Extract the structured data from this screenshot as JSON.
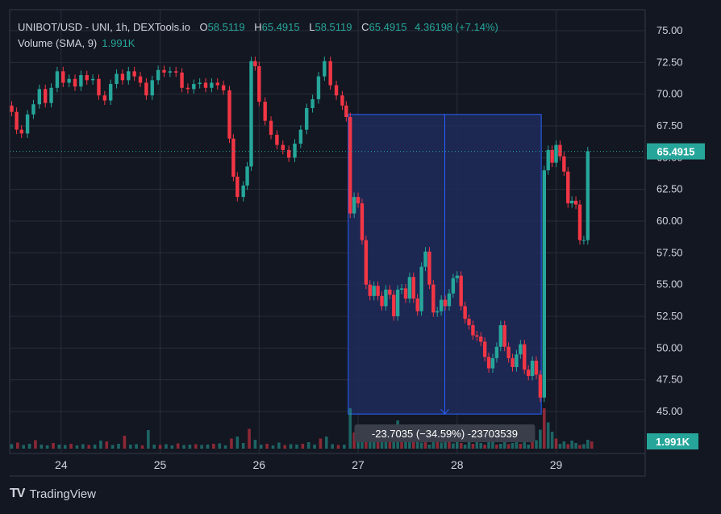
{
  "header": {
    "symbol": "UNIBOT/USD - UNI, 1h, DEXTools.io",
    "open_label": "O",
    "open_value": "58.5119",
    "high_label": "H",
    "high_value": "65.4915",
    "low_label": "L",
    "low_value": "58.5119",
    "close_label": "C",
    "close_value": "65.4915",
    "change": "4.36198 (+7.14%)",
    "volume_label": "Volume (SMA, 9)",
    "volume_value": "1.991K"
  },
  "price_badge": "65.4915",
  "volume_badge": "1.991K",
  "measure": {
    "label": "-23.7035 (−34.59%) -23703539",
    "from_price": 68.4,
    "to_price": 44.8,
    "from_time": 26.9,
    "to_time": 28.85
  },
  "brand": {
    "logo": "TV",
    "name": "TradingView"
  },
  "colors": {
    "background": "#131722",
    "up": "#26a69a",
    "down": "#f23645",
    "grid": "#2a2e39",
    "measure_fill": "#1e2a5a",
    "measure_line": "#2962ff",
    "text": "#d1d4dc"
  },
  "chart_data": {
    "type": "candlestick",
    "title": "UNIBOT/USD - UNI, 1h, DEXTools.io",
    "y_axis_ticks": [
      "75.00",
      "72.50",
      "70.00",
      "67.50",
      "65.00",
      "62.50",
      "60.00",
      "57.50",
      "55.00",
      "52.50",
      "50.00",
      "47.50",
      "45.00"
    ],
    "ylim": [
      44.0,
      76.0
    ],
    "x_axis_ticks": [
      "24",
      "25",
      "26",
      "27",
      "28",
      "29"
    ],
    "xlim": [
      23.48,
      29.9
    ],
    "last_price": 65.4915,
    "grid": true,
    "price_series": [
      [
        23.5,
        68.6
      ],
      [
        23.55,
        67.2
      ],
      [
        23.6,
        66.9
      ],
      [
        23.66,
        68.4
      ],
      [
        23.72,
        69.2
      ],
      [
        23.78,
        70.4
      ],
      [
        23.84,
        69.3
      ],
      [
        23.9,
        70.5
      ],
      [
        23.96,
        71.8
      ],
      [
        24.02,
        70.9
      ],
      [
        24.08,
        71.2
      ],
      [
        24.14,
        70.6
      ],
      [
        24.2,
        71.5
      ],
      [
        24.26,
        71.1
      ],
      [
        24.32,
        71.2
      ],
      [
        24.38,
        69.9
      ],
      [
        24.44,
        69.5
      ],
      [
        24.5,
        70.8
      ],
      [
        24.56,
        71.6
      ],
      [
        24.62,
        71.1
      ],
      [
        24.68,
        71.8
      ],
      [
        24.74,
        71.4
      ],
      [
        24.8,
        70.9
      ],
      [
        24.86,
        69.9
      ],
      [
        24.92,
        71.1
      ],
      [
        24.98,
        71.9
      ],
      [
        25.04,
        71.7
      ],
      [
        25.1,
        71.8
      ],
      [
        25.16,
        71.7
      ],
      [
        25.22,
        70.5
      ],
      [
        25.28,
        70.4
      ],
      [
        25.34,
        70.8
      ],
      [
        25.4,
        70.9
      ],
      [
        25.46,
        70.5
      ],
      [
        25.52,
        70.9
      ],
      [
        25.58,
        70.7
      ],
      [
        25.64,
        70.3
      ],
      [
        25.7,
        66.5
      ],
      [
        25.74,
        63.5
      ],
      [
        25.78,
        61.9
      ],
      [
        25.84,
        62.8
      ],
      [
        25.88,
        64.3
      ],
      [
        25.92,
        72.6
      ],
      [
        25.96,
        72.2
      ],
      [
        26.0,
        69.4
      ],
      [
        26.06,
        67.9
      ],
      [
        26.12,
        66.8
      ],
      [
        26.18,
        66.0
      ],
      [
        26.24,
        65.6
      ],
      [
        26.3,
        65.0
      ],
      [
        26.36,
        66.1
      ],
      [
        26.42,
        67.2
      ],
      [
        26.48,
        68.9
      ],
      [
        26.54,
        69.6
      ],
      [
        26.6,
        71.4
      ],
      [
        26.66,
        72.6
      ],
      [
        26.72,
        70.7
      ],
      [
        26.78,
        69.9
      ],
      [
        26.84,
        69.1
      ],
      [
        26.88,
        68.2
      ],
      [
        26.92,
        60.6
      ],
      [
        26.96,
        61.9
      ],
      [
        27.0,
        61.4
      ],
      [
        27.04,
        58.5
      ],
      [
        27.08,
        55.0
      ],
      [
        27.12,
        54.1
      ],
      [
        27.16,
        54.9
      ],
      [
        27.2,
        54.1
      ],
      [
        27.24,
        53.3
      ],
      [
        27.28,
        54.6
      ],
      [
        27.32,
        54.2
      ],
      [
        27.36,
        52.5
      ],
      [
        27.4,
        54.6
      ],
      [
        27.44,
        54.7
      ],
      [
        27.48,
        53.9
      ],
      [
        27.52,
        55.6
      ],
      [
        27.56,
        53.9
      ],
      [
        27.6,
        52.9
      ],
      [
        27.64,
        56.4
      ],
      [
        27.68,
        57.6
      ],
      [
        27.72,
        55.0
      ],
      [
        27.76,
        52.8
      ],
      [
        27.8,
        52.9
      ],
      [
        27.84,
        53.8
      ],
      [
        27.88,
        53.3
      ],
      [
        27.92,
        54.3
      ],
      [
        27.96,
        55.5
      ],
      [
        28.0,
        55.7
      ],
      [
        28.04,
        53.3
      ],
      [
        28.08,
        52.3
      ],
      [
        28.12,
        51.8
      ],
      [
        28.16,
        51.0
      ],
      [
        28.2,
        50.9
      ],
      [
        28.24,
        50.5
      ],
      [
        28.28,
        49.3
      ],
      [
        28.32,
        48.4
      ],
      [
        28.36,
        49.2
      ],
      [
        28.4,
        50.1
      ],
      [
        28.44,
        51.8
      ],
      [
        28.48,
        50.1
      ],
      [
        28.52,
        49.2
      ],
      [
        28.56,
        48.5
      ],
      [
        28.6,
        49.5
      ],
      [
        28.64,
        50.3
      ],
      [
        28.68,
        48.3
      ],
      [
        28.72,
        47.8
      ],
      [
        28.76,
        49.0
      ],
      [
        28.8,
        47.9
      ],
      [
        28.84,
        46.1
      ],
      [
        28.88,
        64.0
      ],
      [
        28.92,
        65.6
      ],
      [
        28.96,
        64.6
      ],
      [
        29.0,
        66.0
      ],
      [
        29.04,
        65.1
      ],
      [
        29.08,
        63.9
      ],
      [
        29.12,
        61.4
      ],
      [
        29.16,
        61.6
      ],
      [
        29.2,
        61.3
      ],
      [
        29.24,
        58.5
      ],
      [
        29.28,
        58.5
      ],
      [
        29.32,
        65.5
      ]
    ],
    "volume_series": [
      [
        23.5,
        1.1
      ],
      [
        23.56,
        1.5
      ],
      [
        23.62,
        0.9
      ],
      [
        23.68,
        1.2
      ],
      [
        23.74,
        2.1
      ],
      [
        23.8,
        1.0
      ],
      [
        23.86,
        0.8
      ],
      [
        23.92,
        1.4
      ],
      [
        23.98,
        1.0
      ],
      [
        24.04,
        0.9
      ],
      [
        24.1,
        1.2
      ],
      [
        24.16,
        0.8
      ],
      [
        24.22,
        1.1
      ],
      [
        24.28,
        0.9
      ],
      [
        24.34,
        1.0
      ],
      [
        24.4,
        2.0
      ],
      [
        24.46,
        1.8
      ],
      [
        24.52,
        0.9
      ],
      [
        24.58,
        1.2
      ],
      [
        24.64,
        3.2
      ],
      [
        24.7,
        1.0
      ],
      [
        24.76,
        1.1
      ],
      [
        24.82,
        0.8
      ],
      [
        24.88,
        4.6
      ],
      [
        24.94,
        1.0
      ],
      [
        25.0,
        0.9
      ],
      [
        25.06,
        1.1
      ],
      [
        25.12,
        0.8
      ],
      [
        25.18,
        1.3
      ],
      [
        25.24,
        0.9
      ],
      [
        25.3,
        1.0
      ],
      [
        25.36,
        1.1
      ],
      [
        25.42,
        0.9
      ],
      [
        25.48,
        1.0
      ],
      [
        25.54,
        1.2
      ],
      [
        25.6,
        1.3
      ],
      [
        25.66,
        0.8
      ],
      [
        25.72,
        2.5
      ],
      [
        25.78,
        3.0
      ],
      [
        25.84,
        1.4
      ],
      [
        25.9,
        4.9
      ],
      [
        25.96,
        2.2
      ],
      [
        26.02,
        1.0
      ],
      [
        26.08,
        1.2
      ],
      [
        26.14,
        0.8
      ],
      [
        26.2,
        1.5
      ],
      [
        26.26,
        0.9
      ],
      [
        26.32,
        1.1
      ],
      [
        26.38,
        1.0
      ],
      [
        26.44,
        1.2
      ],
      [
        26.5,
        1.6
      ],
      [
        26.56,
        1.0
      ],
      [
        26.62,
        2.5
      ],
      [
        26.68,
        3.0
      ],
      [
        26.74,
        1.1
      ],
      [
        26.8,
        0.9
      ],
      [
        26.86,
        1.0
      ],
      [
        26.92,
        10.0
      ],
      [
        26.96,
        4.0
      ],
      [
        27.0,
        5.5
      ],
      [
        27.04,
        3.0
      ],
      [
        27.08,
        4.3
      ],
      [
        27.12,
        2.0
      ],
      [
        27.16,
        1.8
      ],
      [
        27.2,
        2.4
      ],
      [
        27.24,
        3.2
      ],
      [
        27.28,
        2.0
      ],
      [
        27.32,
        1.7
      ],
      [
        27.36,
        2.5
      ],
      [
        27.4,
        7.0
      ],
      [
        27.44,
        3.8
      ],
      [
        27.48,
        2.2
      ],
      [
        27.52,
        3.1
      ],
      [
        27.56,
        1.8
      ],
      [
        27.6,
        2.9
      ],
      [
        27.64,
        1.5
      ],
      [
        27.68,
        2.3
      ],
      [
        27.72,
        1.0
      ],
      [
        27.76,
        4.1
      ],
      [
        27.8,
        2.0
      ],
      [
        27.84,
        1.5
      ],
      [
        27.88,
        2.1
      ],
      [
        27.92,
        1.6
      ],
      [
        27.96,
        1.3
      ],
      [
        28.0,
        1.9
      ],
      [
        28.04,
        1.4
      ],
      [
        28.08,
        1.0
      ],
      [
        28.12,
        1.6
      ],
      [
        28.16,
        1.2
      ],
      [
        28.2,
        2.2
      ],
      [
        28.24,
        1.4
      ],
      [
        28.28,
        1.0
      ],
      [
        28.32,
        2.8
      ],
      [
        28.36,
        1.6
      ],
      [
        28.4,
        1.0
      ],
      [
        28.44,
        1.2
      ],
      [
        28.48,
        2.9
      ],
      [
        28.52,
        1.1
      ],
      [
        28.56,
        1.4
      ],
      [
        28.6,
        2.0
      ],
      [
        28.64,
        1.2
      ],
      [
        28.68,
        3.1
      ],
      [
        28.72,
        1.0
      ],
      [
        28.76,
        6.0
      ],
      [
        28.8,
        2.1
      ],
      [
        28.84,
        4.7
      ],
      [
        28.88,
        10.0
      ],
      [
        28.92,
        6.5
      ],
      [
        28.96,
        4.2
      ],
      [
        29.0,
        2.5
      ],
      [
        29.04,
        1.2
      ],
      [
        29.08,
        1.8
      ],
      [
        29.12,
        1.1
      ],
      [
        29.16,
        2.0
      ],
      [
        29.2,
        1.4
      ],
      [
        29.24,
        0.9
      ],
      [
        29.28,
        1.1
      ],
      [
        29.32,
        2.2
      ],
      [
        29.36,
        1.8
      ]
    ]
  }
}
